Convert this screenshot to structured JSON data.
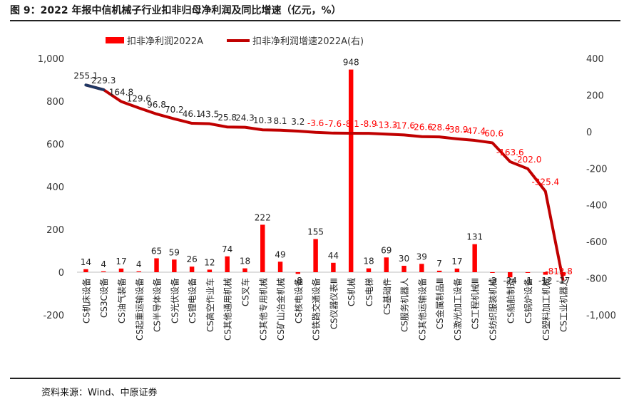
{
  "figure_title": "图 9：2022 年报中信机械子行业扣非归母净利润及同比增速（亿元，%）",
  "source": "资料来源：Wind、中原证券",
  "chart_data": {
    "type": "bar+line",
    "categories": [
      "CS机床设备",
      "CS3C设备",
      "CS油气装备",
      "CS起重运输设备",
      "CS半导体设备",
      "CS光伏设备",
      "CS锂电设备",
      "CS高空作业车",
      "CS其他通用机械",
      "CS叉车",
      "CS其他专用机械",
      "CS矿山冶金机械",
      "CS核电设备",
      "CS铁路交通设备",
      "CS仪器仪表Ⅲ",
      "CS机械",
      "CS电梯",
      "CS基础件",
      "CS服务机器人",
      "CS其他运输设备",
      "CS金属制品Ⅲ",
      "CS激光加工设备",
      "CS工程机械Ⅲ",
      "CS纺织服装机械",
      "CS船舶制造",
      "CS锅炉设备",
      "CS塑料加工机械",
      "CS工业机器人"
    ],
    "series": [
      {
        "name": "扣非净利润2022A",
        "axis": "left",
        "color": "#ff0000",
        "values": [
          14,
          4,
          17,
          4,
          65,
          59,
          26,
          12,
          74,
          18,
          222,
          49,
          -8,
          155,
          44,
          948,
          18,
          69,
          30,
          39,
          7,
          17,
          131,
          -3,
          -24,
          -1,
          -12,
          -17
        ],
        "labels": [
          "14",
          "4",
          "17",
          "4",
          "65",
          "59",
          "26",
          "12",
          "74",
          "18",
          "222",
          "49",
          "-8",
          "155",
          "44",
          "948",
          "18",
          "69",
          "30",
          "39",
          "7",
          "17",
          "131",
          "-3",
          "-24",
          "-1",
          "-12",
          "-17"
        ]
      },
      {
        "name": "扣非净利润增速2022A(右)",
        "axis": "right",
        "color": "#c00000",
        "highlight_color": "#1f3864",
        "values": [
          255.1,
          229.3,
          164.8,
          129.6,
          96.8,
          70.2,
          46.1,
          43.5,
          25.8,
          24.3,
          10.3,
          8.1,
          3.2,
          -3.6,
          -7.6,
          -8.1,
          -8.9,
          -13.3,
          -17.6,
          -26.6,
          -28.4,
          -38.9,
          -47.4,
          -60.6,
          -163.6,
          -202.0,
          -325.4,
          -812.8
        ],
        "labels": [
          "255.1",
          "229.3",
          "164.8",
          "129.6",
          "96.8",
          "70.2",
          "46.1",
          "43.5",
          "25.8",
          "24.3",
          "10.3",
          "8.1",
          "3.2",
          "-3.6",
          "-7.6",
          "-8.1",
          "-8.9",
          "-13.3",
          "-17.6",
          "-26.6",
          "-28.4",
          "-38.9",
          "-47.4",
          "-60.6",
          "-163.6",
          "-202.0",
          "-325.4",
          "-812.8"
        ]
      }
    ],
    "left_axis": {
      "min": -200,
      "max": 1000,
      "step": 200,
      "ticks": [
        "-200",
        "0",
        "200",
        "400",
        "600",
        "800",
        "1,000"
      ]
    },
    "right_axis": {
      "min": -1000,
      "max": 400,
      "step": 200,
      "ticks": [
        "-1,000",
        "-800",
        "-600",
        "-400",
        "-200",
        "0",
        "200",
        "400"
      ]
    },
    "legend_position": "top",
    "grid": false
  }
}
